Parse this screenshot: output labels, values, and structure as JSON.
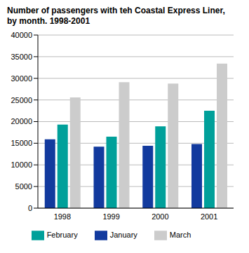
{
  "chart_data": {
    "type": "bar",
    "title": "Number of passengers with teh Coastal Express Liner, by month. 1998-2001",
    "categories": [
      "1998",
      "1999",
      "2000",
      "2001"
    ],
    "series": [
      {
        "name": "January",
        "color": "#123a9e",
        "values": [
          15900,
          14200,
          14400,
          14800
        ]
      },
      {
        "name": "February",
        "color": "#00a09a",
        "values": [
          19300,
          16500,
          18900,
          22500
        ]
      },
      {
        "name": "March",
        "color": "#cccccc",
        "values": [
          25600,
          29100,
          28800,
          33400
        ]
      }
    ],
    "ylim": [
      0,
      40000
    ],
    "yticks": [
      0,
      5000,
      10000,
      15000,
      20000,
      25000,
      30000,
      35000,
      40000
    ],
    "grid": true,
    "legend": "bottom"
  }
}
